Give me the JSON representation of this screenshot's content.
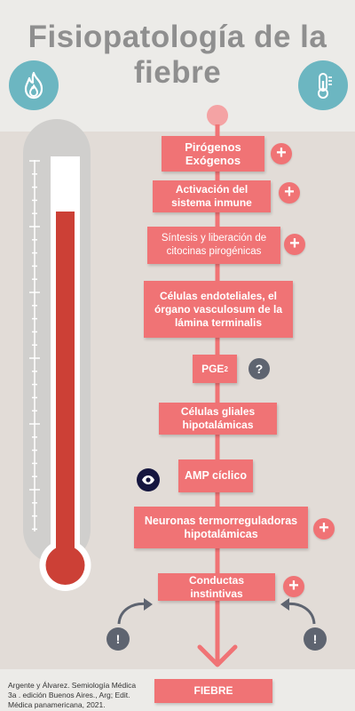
{
  "title": {
    "line1": "Fisiopatología de la",
    "line2": "fiebre"
  },
  "icons": {
    "left": "fire-icon",
    "right": "thermometer-icon"
  },
  "colors": {
    "accent": "#f07375",
    "teal": "#6cb6c1",
    "mercury": "#cc4036",
    "grey_button": "#5e6470",
    "navy_button": "#15163f"
  },
  "flow": {
    "pirogenos": {
      "line1": "Pirógenos",
      "line2": "Exógenos"
    },
    "activacion": {
      "line1": "Activación del",
      "line2": "sistema inmune"
    },
    "sintesis": {
      "line1": "Síntesis y liberación de",
      "line2": "citocinas pirogénicas"
    },
    "celulas_endo": {
      "line1": "Células endoteliales, el",
      "line2": "órgano vasculosum de la",
      "line3": "lámina terminalis"
    },
    "pge": {
      "main": "PGE",
      "sub": "2"
    },
    "gliales": {
      "line1": "Células gliales",
      "line2": "hipotalámicas"
    },
    "amp": {
      "text": "AMP cíclico"
    },
    "neuronas": {
      "line1": "Neuronas termorreguladoras",
      "line2": "hipotalámicas"
    },
    "conductas": {
      "text": "Conductas instintivas"
    },
    "fiebre": {
      "text": "FIEBRE"
    }
  },
  "buttons": {
    "plus": "+",
    "question": "?",
    "exclamation": "!"
  },
  "reference": {
    "line1": "Argente y Álvarez. Semiología Médica",
    "line2": "3a . edición Buenos Aires., Arg; Edit.",
    "line3": "Médica panamericana, 2021."
  }
}
